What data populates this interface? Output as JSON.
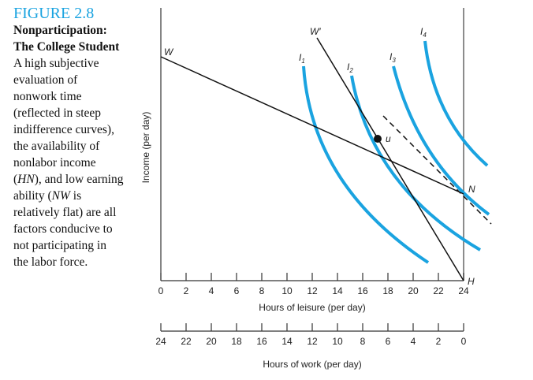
{
  "caption": {
    "figure_number": "FIGURE 2.8",
    "title": "Nonparticipation: The College Student",
    "body_parts": [
      "A high subjective evaluation of nonwork time (reflected in steep indifference curves), the availability of nonlabor income (",
      "HN",
      "), and low earning ability (",
      "NW",
      " is relatively flat) are all factors conducive to not participating in the labor force."
    ]
  },
  "diagram": {
    "y_axis_label": "Income (per day)",
    "x_axis_label": "Hours of leisure (per day)",
    "x2_axis_label": "Hours of work (per day)",
    "leisure_ticks": [
      "0",
      "2",
      "4",
      "6",
      "8",
      "10",
      "12",
      "14",
      "16",
      "18",
      "20",
      "22",
      "24"
    ],
    "work_ticks": [
      "24",
      "22",
      "20",
      "18",
      "16",
      "14",
      "12",
      "10",
      "8",
      "6",
      "4",
      "2",
      "0"
    ],
    "points": {
      "W": "W",
      "W_prime": "W′",
      "N": "N",
      "H": "H",
      "u": "u"
    },
    "curves": [
      "I1",
      "I2",
      "I3",
      "I4"
    ],
    "curve_color": "#1aa3e0",
    "line_color": "#111111"
  }
}
